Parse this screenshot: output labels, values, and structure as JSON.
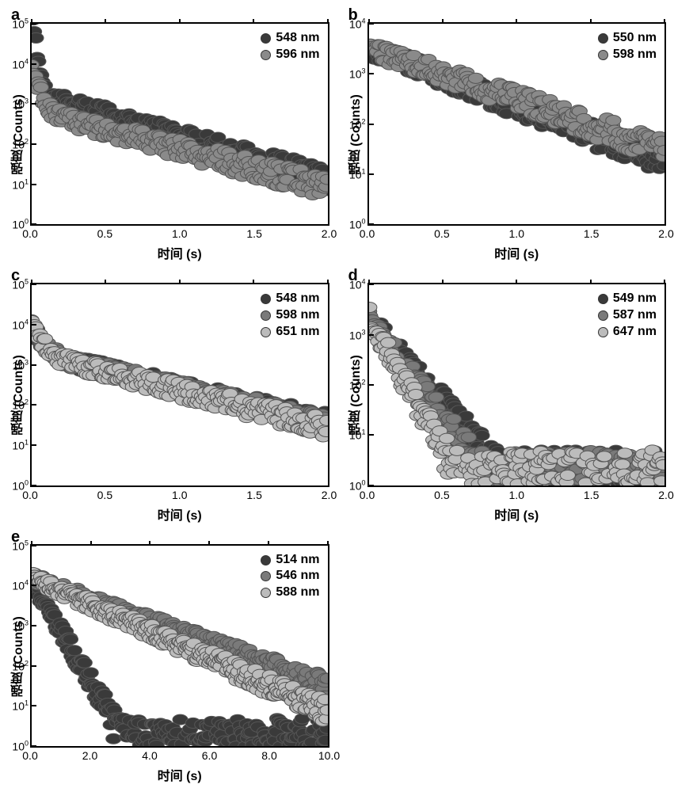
{
  "figure": {
    "background_color": "#ffffff",
    "axis_color": "#000000",
    "font_family": "Arial",
    "label_fontsize": 16,
    "tick_fontsize": 14,
    "panel_label_fontsize": 20,
    "marker_size": 3.2,
    "marker_stroke": "#555555",
    "panels": {
      "a": {
        "label": "a",
        "xlabel": "时间 (s)",
        "ylabel": "强度 (Counts)",
        "xlim": [
          0.0,
          2.0
        ],
        "xticks": [
          0.0,
          0.5,
          1.0,
          1.5,
          2.0
        ],
        "yscale": "log",
        "ylim_exp": [
          0,
          5
        ],
        "yticks_exp": [
          0,
          1,
          2,
          3,
          4,
          5
        ],
        "legend_pos": "top-right",
        "series": [
          {
            "label": "548 nm",
            "color": "#3a3a3a"
          },
          {
            "label": "596 nm",
            "color": "#8a8a8a"
          }
        ],
        "decay": {
          "type": "biexponential",
          "y0_log": [
            5.3,
            4.0
          ],
          "tau_fast": [
            0.015,
            0.03
          ],
          "tau_slow": [
            0.4,
            0.45
          ],
          "frac_fast": [
            0.99,
            0.93
          ],
          "noise_floor_log": 0.1,
          "n_points": 220
        }
      },
      "b": {
        "label": "b",
        "xlabel": "时间 (s)",
        "ylabel": "强度 (Counts)",
        "xlim": [
          0.0,
          2.0
        ],
        "xticks": [
          0.0,
          0.5,
          1.0,
          1.5,
          2.0
        ],
        "yscale": "log",
        "ylim_exp": [
          0,
          4
        ],
        "yticks_exp": [
          0,
          1,
          2,
          3,
          4
        ],
        "legend_pos": "top-right",
        "series": [
          {
            "label": "550 nm",
            "color": "#3a3a3a"
          },
          {
            "label": "598 nm",
            "color": "#8a8a8a"
          }
        ],
        "decay": {
          "type": "single",
          "y0_log": [
            3.5,
            3.5
          ],
          "tau": [
            0.38,
            0.43
          ],
          "spike0_log": [
            4.5,
            3.6
          ],
          "noise_floor_log": 0.1,
          "n_points": 220
        }
      },
      "c": {
        "label": "c",
        "xlabel": "时间 (s)",
        "ylabel": "强度 (Counts)",
        "xlim": [
          0.0,
          2.0
        ],
        "xticks": [
          0.0,
          0.5,
          1.0,
          1.5,
          2.0
        ],
        "yscale": "log",
        "ylim_exp": [
          0,
          5
        ],
        "yticks_exp": [
          0,
          1,
          2,
          3,
          4,
          5
        ],
        "legend_pos": "top-right",
        "series": [
          {
            "label": "548 nm",
            "color": "#3a3a3a"
          },
          {
            "label": "598 nm",
            "color": "#7a7a7a"
          },
          {
            "label": "651 nm",
            "color": "#bcbcbc"
          }
        ],
        "decay": {
          "type": "biexponential",
          "y0_log": [
            4.0,
            4.0,
            4.0
          ],
          "tau_fast": [
            0.05,
            0.05,
            0.05
          ],
          "tau_slow": [
            0.5,
            0.48,
            0.46
          ],
          "frac_fast": [
            0.8,
            0.8,
            0.8
          ],
          "noise_floor_log": 0.1,
          "n_points": 220
        }
      },
      "d": {
        "label": "d",
        "xlabel": "时间 (s)",
        "ylabel": "强度 (Counts)",
        "xlim": [
          0.0,
          2.0
        ],
        "xticks": [
          0.0,
          0.5,
          1.0,
          1.5,
          2.0
        ],
        "yscale": "log",
        "ylim_exp": [
          0,
          4
        ],
        "yticks_exp": [
          0,
          1,
          2,
          3,
          4
        ],
        "legend_pos": "top-right",
        "series": [
          {
            "label": "549 nm",
            "color": "#3a3a3a"
          },
          {
            "label": "587 nm",
            "color": "#7a7a7a"
          },
          {
            "label": "647 nm",
            "color": "#bcbcbc"
          }
        ],
        "decay": {
          "type": "single",
          "y0_log": [
            3.3,
            3.3,
            3.3
          ],
          "tau": [
            0.13,
            0.11,
            0.085
          ],
          "spike0_log": [
            4.3,
            3.4,
            3.4
          ],
          "noise_floor_log": 0.0,
          "n_points": 260
        }
      },
      "e": {
        "label": "e",
        "xlabel": "时间 (s)",
        "ylabel": "强度 (Counts)",
        "xlim": [
          0.0,
          10.0
        ],
        "xticks": [
          0.0,
          2.0,
          4.0,
          6.0,
          8.0,
          10.0
        ],
        "yscale": "log",
        "ylim_exp": [
          0,
          5
        ],
        "yticks_exp": [
          0,
          1,
          2,
          3,
          4,
          5
        ],
        "legend_pos": "top-right",
        "series": [
          {
            "label": "514 nm",
            "color": "#3a3a3a"
          },
          {
            "label": "546 nm",
            "color": "#7a7a7a"
          },
          {
            "label": "588 nm",
            "color": "#bcbcbc"
          }
        ],
        "decay": {
          "type": "mixed",
          "y0_log": [
            4.1,
            4.2,
            4.2
          ],
          "tau": [
            0.35,
            1.6,
            1.3
          ],
          "noise_floor_log": 0.0,
          "n_points": 320
        }
      }
    }
  }
}
